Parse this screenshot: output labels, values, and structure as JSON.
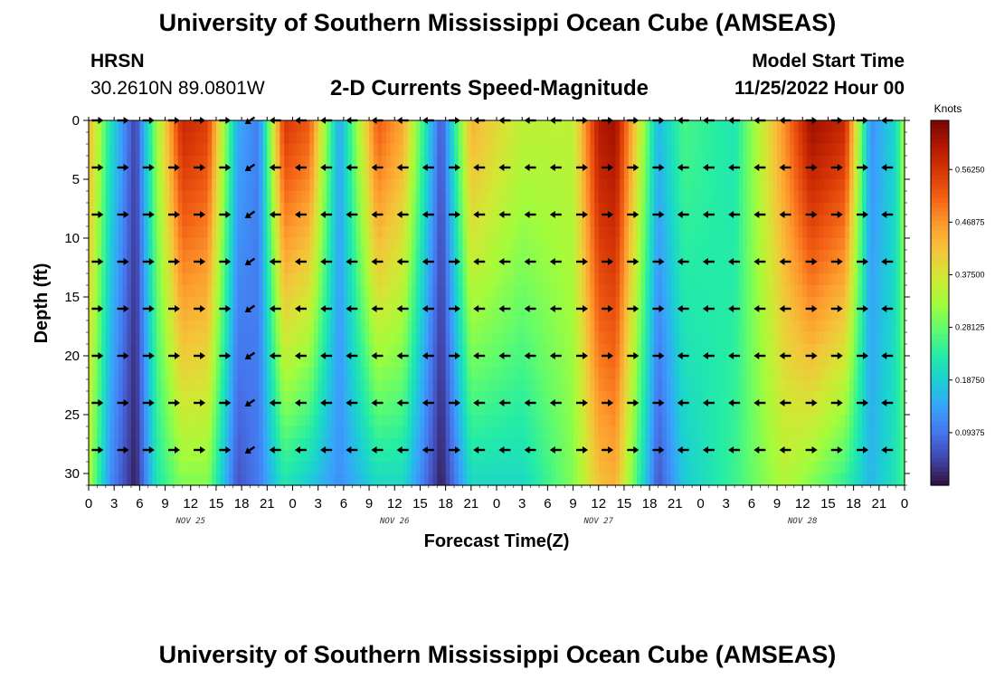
{
  "header": {
    "title": "University of Southern Mississippi Ocean Cube (AMSEAS)",
    "station": "HRSN",
    "coords": "30.2610N  89.0801W",
    "subtitle": "2-D Currents Speed-Magnitude",
    "start_label": "Model Start Time",
    "start_value": "11/25/2022 Hour 00"
  },
  "footer_title": "University of Southern Mississippi Ocean Cube (AMSEAS)",
  "chart_data": {
    "type": "heatmap",
    "title": "2-D Currents Speed-Magnitude",
    "xlabel": "Forecast Time(Z)",
    "ylabel": "Depth (ft)",
    "x_range_hours": [
      0,
      96
    ],
    "y_range_ft": [
      0,
      31
    ],
    "x_tick_labels": [
      "0",
      "3",
      "6",
      "9",
      "12",
      "15",
      "18",
      "21",
      "0",
      "3",
      "6",
      "9",
      "12",
      "15",
      "18",
      "21",
      "0",
      "3",
      "6",
      "9",
      "12",
      "15",
      "18",
      "21",
      "0",
      "3",
      "6",
      "9",
      "12",
      "15",
      "18",
      "21",
      "0"
    ],
    "y_ticks": [
      0,
      5,
      10,
      15,
      20,
      25,
      30
    ],
    "day_labels": [
      {
        "text": "NOV 25",
        "hour": 12
      },
      {
        "text": "NOV 26",
        "hour": 36
      },
      {
        "text": "NOV 27",
        "hour": 60
      },
      {
        "text": "NOV 28",
        "hour": 84
      }
    ],
    "colorbar": {
      "label": "Knots",
      "min": 0,
      "max": 0.65,
      "ticks": [
        "0.56250",
        "0.46875",
        "0.37500",
        "0.28125",
        "0.18750",
        "0.09375"
      ],
      "colors": [
        "#30123b",
        "#4145ab",
        "#4675ed",
        "#39a2fc",
        "#1bcfd4",
        "#24eca6",
        "#61fc6c",
        "#a4fc3b",
        "#d1e834",
        "#f3c63a",
        "#fe9b2d",
        "#f36315",
        "#d93806",
        "#b11901",
        "#7a0402"
      ]
    },
    "speed_profile_keypoints": [
      {
        "hour": 0,
        "surface": 0.44,
        "bottom": 0.34
      },
      {
        "hour": 2.5,
        "surface": 0.22,
        "bottom": 0.12
      },
      {
        "hour": 5.5,
        "surface": 0.04,
        "bottom": 0.01
      },
      {
        "hour": 8,
        "surface": 0.32,
        "bottom": 0.22
      },
      {
        "hour": 11,
        "surface": 0.58,
        "bottom": 0.3
      },
      {
        "hour": 14,
        "surface": 0.55,
        "bottom": 0.3
      },
      {
        "hour": 17.5,
        "surface": 0.15,
        "bottom": 0.06
      },
      {
        "hour": 20,
        "surface": 0.1,
        "bottom": 0.1
      },
      {
        "hour": 23,
        "surface": 0.56,
        "bottom": 0.22
      },
      {
        "hour": 26,
        "surface": 0.52,
        "bottom": 0.18
      },
      {
        "hour": 29.5,
        "surface": 0.14,
        "bottom": 0.12
      },
      {
        "hour": 34,
        "surface": 0.52,
        "bottom": 0.2
      },
      {
        "hour": 37,
        "surface": 0.45,
        "bottom": 0.2
      },
      {
        "hour": 41.5,
        "surface": 0.06,
        "bottom": 0.01
      },
      {
        "hour": 45,
        "surface": 0.44,
        "bottom": 0.2
      },
      {
        "hour": 51,
        "surface": 0.35,
        "bottom": 0.2
      },
      {
        "hour": 57,
        "surface": 0.35,
        "bottom": 0.3
      },
      {
        "hour": 60,
        "surface": 0.6,
        "bottom": 0.42
      },
      {
        "hour": 62,
        "surface": 0.62,
        "bottom": 0.44
      },
      {
        "hour": 65,
        "surface": 0.35,
        "bottom": 0.22
      },
      {
        "hour": 67,
        "surface": 0.16,
        "bottom": 0.06
      },
      {
        "hour": 70,
        "surface": 0.26,
        "bottom": 0.18
      },
      {
        "hour": 76,
        "surface": 0.22,
        "bottom": 0.25
      },
      {
        "hour": 82,
        "surface": 0.48,
        "bottom": 0.34
      },
      {
        "hour": 85,
        "surface": 0.62,
        "bottom": 0.3
      },
      {
        "hour": 89,
        "surface": 0.58,
        "bottom": 0.24
      },
      {
        "hour": 92,
        "surface": 0.12,
        "bottom": 0.16
      },
      {
        "hour": 95,
        "surface": 0.2,
        "bottom": 0.22
      },
      {
        "hour": 96,
        "surface": 0.34,
        "bottom": 0.26
      }
    ],
    "arrow_depths_ft": [
      0,
      4,
      8,
      12,
      16,
      20,
      24,
      28
    ],
    "arrow_direction_keypoints": [
      {
        "hour": 0,
        "dir": "E"
      },
      {
        "hour": 5,
        "dir": "W"
      },
      {
        "hour": 7,
        "dir": "E"
      },
      {
        "hour": 17,
        "dir": "SE"
      },
      {
        "hour": 19,
        "dir": "SW"
      },
      {
        "hour": 21,
        "dir": "W"
      },
      {
        "hour": 41,
        "dir": "W"
      },
      {
        "hour": 43,
        "dir": "E"
      },
      {
        "hour": 45,
        "dir": "W"
      },
      {
        "hour": 56,
        "dir": "W"
      },
      {
        "hour": 58,
        "dir": "E"
      },
      {
        "hour": 69,
        "dir": "W"
      },
      {
        "hour": 81,
        "dir": "W"
      },
      {
        "hour": 83,
        "dir": "E"
      },
      {
        "hour": 92,
        "dir": "SE"
      },
      {
        "hour": 94,
        "dir": "W"
      },
      {
        "hour": 96,
        "dir": "E"
      }
    ]
  }
}
